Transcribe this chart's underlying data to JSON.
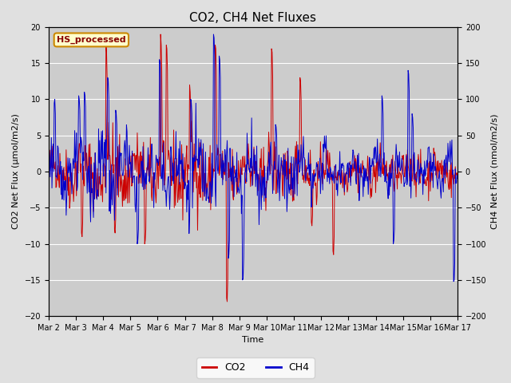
{
  "title": "CO2, CH4 Net Fluxes",
  "xlabel": "Time",
  "ylabel_left": "CO2 Net Flux (μmol/m2/s)",
  "ylabel_right": "CH4 Net Flux (nmol/m2/s)",
  "ylim_left": [
    -20,
    20
  ],
  "ylim_right": [
    -200,
    200
  ],
  "yticks_left": [
    -20,
    -15,
    -10,
    -5,
    0,
    5,
    10,
    15,
    20
  ],
  "yticks_right": [
    -200,
    -150,
    -100,
    -50,
    0,
    50,
    100,
    150,
    200
  ],
  "n_days": 15,
  "n_per_day": 48,
  "co2_color": "#cc0000",
  "ch4_color": "#0000cc",
  "bg_color": "#e0e0e0",
  "plot_bg_color": "#cccccc",
  "legend_label": "HS_processed",
  "legend_bg": "#ffffcc",
  "legend_edge": "#cc8800",
  "legend_text_color": "#880000",
  "fig_width": 6.4,
  "fig_height": 4.8,
  "dpi": 100,
  "co2_lw": 0.7,
  "ch4_lw": 0.7,
  "xtick_labels": [
    "Mar 2",
    "Mar 3",
    "Mar 4",
    "Mar 5",
    "Mar 6",
    "Mar 7",
    "Mar 8",
    "Mar 9",
    "Mar 10",
    "Mar 11",
    "Mar 12",
    "Mar 13",
    "Mar 14",
    "Mar 15",
    "Mar 16",
    "Mar 17"
  ],
  "xtick_positions": [
    0,
    1,
    2,
    3,
    4,
    5,
    6,
    7,
    8,
    9,
    10,
    11,
    12,
    13,
    14,
    15
  ],
  "grid_color": "#bbbbbb",
  "title_fontsize": 11
}
